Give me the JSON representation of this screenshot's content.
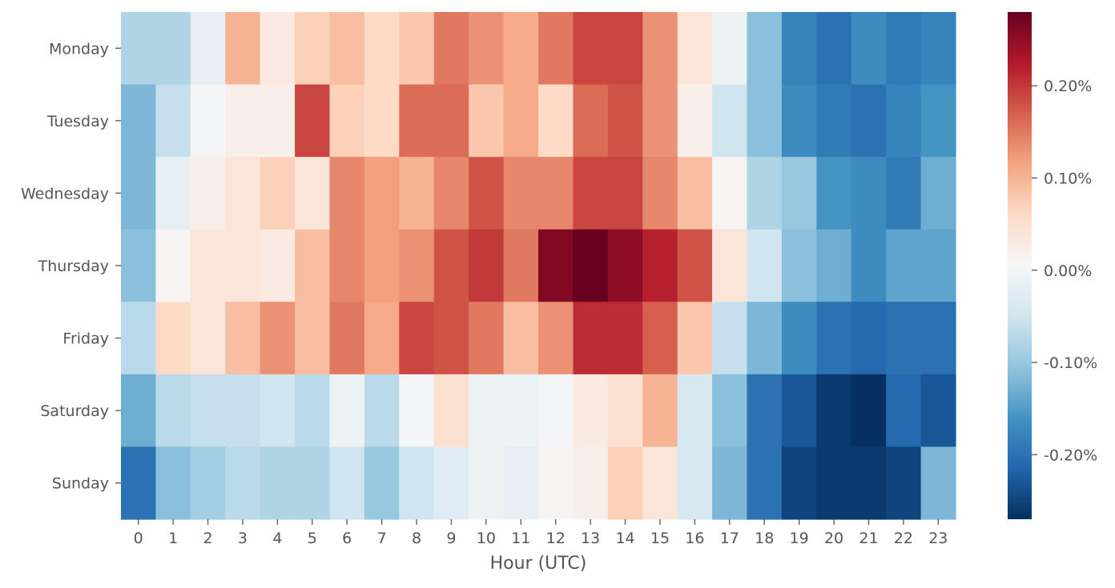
{
  "chart_data": {
    "type": "heatmap",
    "title": "",
    "xlabel": "Hour (UTC)",
    "ylabel": "",
    "x_categories": [
      "0",
      "1",
      "2",
      "3",
      "4",
      "5",
      "6",
      "7",
      "8",
      "9",
      "10",
      "11",
      "12",
      "13",
      "14",
      "15",
      "16",
      "17",
      "18",
      "19",
      "20",
      "21",
      "22",
      "23"
    ],
    "y_categories": [
      "Monday",
      "Tuesday",
      "Wednesday",
      "Thursday",
      "Friday",
      "Saturday",
      "Sunday"
    ],
    "value_unit": "%",
    "values": [
      [
        -0.08,
        -0.08,
        -0.02,
        0.1,
        0.03,
        0.07,
        0.09,
        0.06,
        0.08,
        0.15,
        0.13,
        0.11,
        0.15,
        0.19,
        0.19,
        0.13,
        0.04,
        -0.01,
        -0.11,
        -0.18,
        -0.2,
        -0.17,
        -0.19,
        -0.18
      ],
      [
        -0.12,
        -0.06,
        0.0,
        0.02,
        0.02,
        0.19,
        0.07,
        0.06,
        0.16,
        0.16,
        0.08,
        0.11,
        0.06,
        0.16,
        0.18,
        0.13,
        0.02,
        -0.05,
        -0.11,
        -0.17,
        -0.19,
        -0.2,
        -0.18,
        -0.16
      ],
      [
        -0.12,
        -0.02,
        0.02,
        0.04,
        0.07,
        0.04,
        0.14,
        0.12,
        0.1,
        0.14,
        0.18,
        0.14,
        0.14,
        0.19,
        0.19,
        0.14,
        0.09,
        0.01,
        -0.08,
        -0.1,
        -0.16,
        -0.17,
        -0.19,
        -0.13
      ],
      [
        -0.11,
        0.01,
        0.04,
        0.04,
        0.03,
        0.09,
        0.14,
        0.12,
        0.13,
        0.18,
        0.2,
        0.15,
        0.26,
        0.28,
        0.25,
        0.22,
        0.18,
        0.04,
        -0.05,
        -0.11,
        -0.13,
        -0.17,
        -0.14,
        -0.14
      ],
      [
        -0.07,
        0.06,
        0.04,
        0.09,
        0.13,
        0.09,
        0.15,
        0.11,
        0.19,
        0.18,
        0.15,
        0.09,
        0.13,
        0.21,
        0.21,
        0.17,
        0.08,
        -0.06,
        -0.12,
        -0.17,
        -0.2,
        -0.21,
        -0.2,
        -0.2
      ],
      [
        -0.13,
        -0.07,
        -0.06,
        -0.06,
        -0.05,
        -0.07,
        -0.01,
        -0.07,
        0.0,
        0.05,
        -0.01,
        -0.01,
        0.0,
        0.03,
        0.05,
        0.1,
        -0.04,
        -0.11,
        -0.2,
        -0.23,
        -0.26,
        -0.27,
        -0.21,
        -0.23
      ],
      [
        -0.2,
        -0.11,
        -0.09,
        -0.07,
        -0.08,
        -0.08,
        -0.05,
        -0.1,
        -0.05,
        -0.03,
        -0.01,
        -0.02,
        0.01,
        0.02,
        0.07,
        0.04,
        -0.04,
        -0.12,
        -0.2,
        -0.25,
        -0.26,
        -0.26,
        -0.25,
        -0.12
      ]
    ],
    "vmin": -0.27,
    "vmax": 0.28,
    "colormap": "RdBu_r",
    "colormap_stops": [
      "#053061",
      "#2166ac",
      "#4393c3",
      "#92c5de",
      "#d1e5f0",
      "#f7f7f7",
      "#fddbc7",
      "#f4a582",
      "#d6604d",
      "#b2182b",
      "#67001f"
    ],
    "colorbar_ticks": [
      {
        "value": 0.2,
        "label": "0.20%"
      },
      {
        "value": 0.1,
        "label": "0.10%"
      },
      {
        "value": 0.0,
        "label": "0.00%"
      },
      {
        "value": -0.1,
        "label": "-0.10%"
      },
      {
        "value": -0.2,
        "label": "-0.20%"
      }
    ],
    "grid": false,
    "legend": "colorbar-right"
  },
  "colors": {
    "tick_text": "#555555",
    "tick_line": "#555555",
    "background": "#ffffff"
  }
}
